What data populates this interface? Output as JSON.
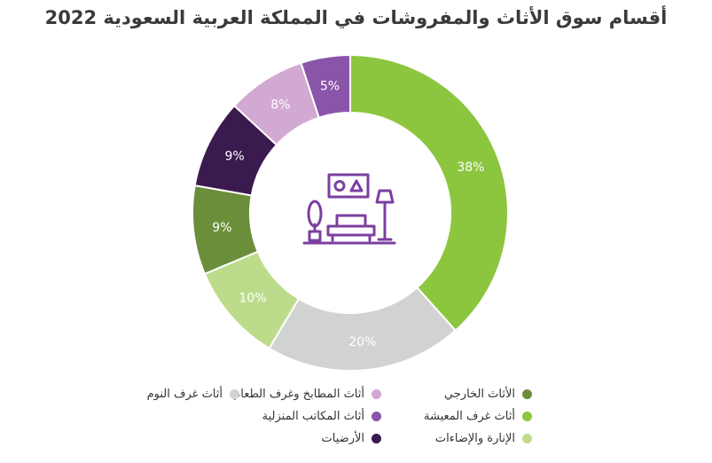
{
  "title": "أقسام سوق الأثاث والمفروشات في المملكة العربية السعودية 2022",
  "chart_data": {
    "type": "pie",
    "title": "أقسام سوق الأثاث والمفروشات في المملكة العربية السعودية 2022",
    "donut": true,
    "center_icon": "living-room-icon",
    "slices": [
      {
        "label": "أثاث غرف المعيشة",
        "value": 38,
        "display": "38%",
        "color": "#8cc63f"
      },
      {
        "label": "أثاث غرف النوم",
        "value": 20,
        "display": "20%",
        "color": "#d1d3d2"
      },
      {
        "label": "الإنارة والإضاءات",
        "value": 10,
        "display": "10%",
        "color": "#bddc8b"
      },
      {
        "label": "الأثاث الخارجي",
        "value": 9,
        "display": "9%",
        "color": "#6b8e3a"
      },
      {
        "label": "الأرضيات",
        "value": 9,
        "display": "9%",
        "color": "#3b1a4f"
      },
      {
        "label": "أثاث المطابخ وغرف الطعام",
        "value": 8,
        "display": "8%",
        "color": "#d1a9d3"
      },
      {
        "label": "أثاث المكاتب المنزلية",
        "value": 5,
        "display": "5%",
        "color": "#8a55a9"
      }
    ],
    "legend_placement": "bottom",
    "legend": [
      {
        "label": "الأثاث الخارجي",
        "color": "#6b8e3a"
      },
      {
        "label": "أثاث غرف المعيشة",
        "color": "#8cc63f"
      },
      {
        "label": "الإنارة والإضاءات",
        "color": "#bddc8b"
      },
      {
        "label": "أثاث المطابخ وغرف الطعام",
        "color": "#d1a9d3"
      },
      {
        "label": "أثاث المكاتب المنزلية",
        "color": "#8a55a9"
      },
      {
        "label": "الأرضيات",
        "color": "#3b1a4f"
      },
      {
        "label": "أثاث غرف النوم",
        "color": "#d1d3d2"
      }
    ]
  }
}
